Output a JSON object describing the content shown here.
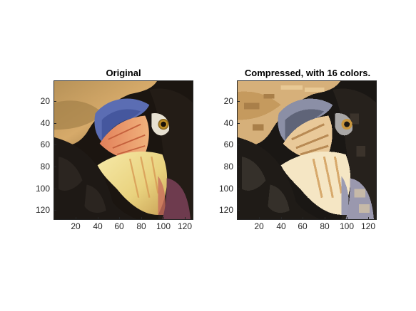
{
  "figure": {
    "panels": [
      {
        "title": "Original",
        "xticks": [
          "20",
          "40",
          "60",
          "80",
          "100",
          "120"
        ],
        "yticks": [
          "20",
          "40",
          "60",
          "80",
          "100",
          "120"
        ]
      },
      {
        "title": "Compressed, with 16 colors.",
        "xticks": [
          "20",
          "40",
          "60",
          "80",
          "100",
          "120"
        ],
        "yticks": [
          "20",
          "40",
          "60",
          "80",
          "100",
          "120"
        ]
      }
    ]
  },
  "colors": {
    "axis": "#262626",
    "background": "#ffffff",
    "dark_feathers": "#1f1a16",
    "beak_light": "#f2e0a8",
    "beak_orange": "#e09a60",
    "blue_patch": "#5c6fb0",
    "tan_feathers": "#c9a36a"
  }
}
